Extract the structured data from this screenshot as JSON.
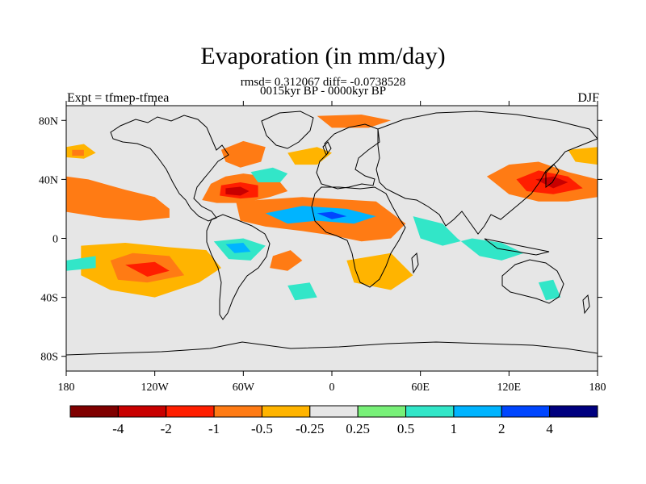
{
  "chart_data": {
    "type": "heatmap",
    "title": "Evaporation (in mm/day)",
    "subtitle_line1": "rmsd= 0.312067 diff= -0.0738528",
    "subtitle_line2": "0015kyr BP - 0000kyr BP",
    "left_label": "Expt = tfmep-tfmea",
    "right_label": "DJF",
    "xlim": [
      -180,
      180
    ],
    "ylim": [
      -90,
      90
    ],
    "x_ticks": [
      {
        "value": -180,
        "label": "180"
      },
      {
        "value": -120,
        "label": "120W"
      },
      {
        "value": -60,
        "label": "60W"
      },
      {
        "value": 0,
        "label": "0"
      },
      {
        "value": 60,
        "label": "60E"
      },
      {
        "value": 120,
        "label": "120E"
      },
      {
        "value": 180,
        "label": "180"
      }
    ],
    "y_ticks": [
      {
        "value": 80,
        "label": "80N"
      },
      {
        "value": 40,
        "label": "40N"
      },
      {
        "value": 0,
        "label": "0"
      },
      {
        "value": -40,
        "label": "40S"
      },
      {
        "value": -80,
        "label": "80S"
      }
    ],
    "colorbar": {
      "colors": [
        "#7f0000",
        "#c80000",
        "#ff1e00",
        "#ff7b14",
        "#ffb400",
        "#e6e6e6",
        "#78f078",
        "#32e6c8",
        "#00b4ff",
        "#0046ff",
        "#00007f"
      ],
      "labels": [
        "-4",
        "-2",
        "-1",
        "-0.5",
        "-0.25",
        "0.25",
        "0.5",
        "1",
        "2",
        "4"
      ]
    },
    "regions": [
      {
        "level": -0.5,
        "points": [
          [
            -180,
            42
          ],
          [
            -165,
            40
          ],
          [
            -140,
            33
          ],
          [
            -120,
            28
          ],
          [
            -110,
            20
          ],
          [
            -110,
            14
          ],
          [
            -130,
            12
          ],
          [
            -155,
            14
          ],
          [
            -180,
            18
          ]
        ]
      },
      {
        "level": -0.25,
        "points": [
          [
            -180,
            62
          ],
          [
            -168,
            64
          ],
          [
            -160,
            58
          ],
          [
            -168,
            54
          ],
          [
            -180,
            55
          ]
        ]
      },
      {
        "level": -0.5,
        "points": [
          [
            -176,
            60
          ],
          [
            -168,
            60
          ],
          [
            -168,
            56
          ],
          [
            -176,
            56
          ]
        ]
      },
      {
        "level": -0.5,
        "points": [
          [
            -82,
            37
          ],
          [
            -72,
            42
          ],
          [
            -60,
            44
          ],
          [
            -45,
            42
          ],
          [
            -35,
            38
          ],
          [
            -30,
            32
          ],
          [
            -42,
            28
          ],
          [
            -60,
            24
          ],
          [
            -78,
            24
          ],
          [
            -88,
            26
          ]
        ]
      },
      {
        "level": -1,
        "points": [
          [
            -75,
            36
          ],
          [
            -62,
            38
          ],
          [
            -50,
            36
          ],
          [
            -50,
            28
          ],
          [
            -62,
            27
          ],
          [
            -76,
            29
          ]
        ]
      },
      {
        "level": -2,
        "points": [
          [
            -72,
            34
          ],
          [
            -62,
            35
          ],
          [
            -56,
            32
          ],
          [
            -62,
            29
          ],
          [
            -72,
            30
          ]
        ]
      },
      {
        "level": -0.5,
        "points": [
          [
            -75,
            60
          ],
          [
            -60,
            66
          ],
          [
            -45,
            62
          ],
          [
            -48,
            52
          ],
          [
            -62,
            48
          ],
          [
            -72,
            52
          ]
        ]
      },
      {
        "level": -0.5,
        "points": [
          [
            -10,
            83
          ],
          [
            20,
            84
          ],
          [
            40,
            80
          ],
          [
            25,
            75
          ],
          [
            0,
            75
          ]
        ]
      },
      {
        "level": -0.25,
        "points": [
          [
            -30,
            58
          ],
          [
            -10,
            62
          ],
          [
            0,
            58
          ],
          [
            -10,
            50
          ],
          [
            -25,
            50
          ]
        ]
      },
      {
        "level": 0.5,
        "points": [
          [
            -55,
            45
          ],
          [
            -40,
            48
          ],
          [
            -30,
            44
          ],
          [
            -35,
            38
          ],
          [
            -50,
            38
          ]
        ]
      },
      {
        "level": -0.25,
        "points": [
          [
            -170,
            -5
          ],
          [
            -140,
            -3
          ],
          [
            -110,
            -6
          ],
          [
            -85,
            -8
          ],
          [
            -75,
            -20
          ],
          [
            -90,
            -30
          ],
          [
            -120,
            -40
          ],
          [
            -150,
            -35
          ],
          [
            -170,
            -25
          ]
        ]
      },
      {
        "level": -0.5,
        "points": [
          [
            -150,
            -15
          ],
          [
            -135,
            -10
          ],
          [
            -110,
            -12
          ],
          [
            -100,
            -25
          ],
          [
            -125,
            -30
          ],
          [
            -145,
            -28
          ]
        ]
      },
      {
        "level": -1,
        "points": [
          [
            -140,
            -18
          ],
          [
            -120,
            -16
          ],
          [
            -110,
            -22
          ],
          [
            -125,
            -26
          ]
        ]
      },
      {
        "level": -0.5,
        "points": [
          [
            -40,
            -12
          ],
          [
            -28,
            -8
          ],
          [
            -20,
            -15
          ],
          [
            -30,
            -22
          ],
          [
            -42,
            -20
          ]
        ]
      },
      {
        "level": -0.5,
        "points": [
          [
            -65,
            25
          ],
          [
            -20,
            28
          ],
          [
            30,
            25
          ],
          [
            50,
            10
          ],
          [
            40,
            0
          ],
          [
            20,
            -2
          ],
          [
            0,
            2
          ],
          [
            -20,
            5
          ],
          [
            -45,
            8
          ],
          [
            -62,
            12
          ]
        ]
      },
      {
        "level": 1,
        "points": [
          [
            -45,
            17
          ],
          [
            -20,
            22
          ],
          [
            10,
            20
          ],
          [
            30,
            15
          ],
          [
            15,
            10
          ],
          [
            -10,
            12
          ],
          [
            -30,
            10
          ]
        ]
      },
      {
        "level": 2,
        "points": [
          [
            -10,
            17
          ],
          [
            0,
            18
          ],
          [
            10,
            15
          ],
          [
            0,
            13
          ]
        ]
      },
      {
        "level": 0.5,
        "points": [
          [
            -80,
            -2
          ],
          [
            -60,
            0
          ],
          [
            -45,
            -5
          ],
          [
            -55,
            -15
          ],
          [
            -70,
            -14
          ]
        ]
      },
      {
        "level": 1,
        "points": [
          [
            -72,
            -4
          ],
          [
            -60,
            -3
          ],
          [
            -55,
            -9
          ],
          [
            -66,
            -10
          ]
        ]
      },
      {
        "level": 0.5,
        "points": [
          [
            55,
            15
          ],
          [
            75,
            10
          ],
          [
            85,
            0
          ],
          [
            100,
            -12
          ],
          [
            115,
            -15
          ],
          [
            130,
            -10
          ],
          [
            115,
            -3
          ],
          [
            95,
            0
          ],
          [
            75,
            -5
          ],
          [
            60,
            0
          ]
        ]
      },
      {
        "level": -0.5,
        "points": [
          [
            105,
            42
          ],
          [
            120,
            50
          ],
          [
            140,
            52
          ],
          [
            160,
            45
          ],
          [
            180,
            40
          ],
          [
            180,
            28
          ],
          [
            160,
            25
          ],
          [
            140,
            25
          ],
          [
            120,
            30
          ]
        ]
      },
      {
        "level": -1,
        "points": [
          [
            125,
            40
          ],
          [
            140,
            46
          ],
          [
            160,
            42
          ],
          [
            170,
            34
          ],
          [
            150,
            30
          ],
          [
            132,
            32
          ]
        ]
      },
      {
        "level": -2,
        "points": [
          [
            138,
            40
          ],
          [
            150,
            42
          ],
          [
            160,
            38
          ],
          [
            150,
            34
          ]
        ]
      },
      {
        "level": -0.25,
        "points": [
          [
            160,
            60
          ],
          [
            180,
            62
          ],
          [
            180,
            50
          ],
          [
            165,
            52
          ]
        ]
      },
      {
        "level": 0.5,
        "points": [
          [
            140,
            -30
          ],
          [
            150,
            -28
          ],
          [
            155,
            -40
          ],
          [
            145,
            -42
          ]
        ]
      },
      {
        "level": 0.5,
        "points": [
          [
            -30,
            -32
          ],
          [
            -15,
            -30
          ],
          [
            -10,
            -40
          ],
          [
            -25,
            -42
          ]
        ]
      },
      {
        "level": -0.25,
        "points": [
          [
            10,
            -15
          ],
          [
            40,
            -10
          ],
          [
            55,
            -25
          ],
          [
            40,
            -35
          ],
          [
            15,
            -30
          ]
        ]
      },
      {
        "level": 0.5,
        "points": [
          [
            -180,
            -15
          ],
          [
            -160,
            -12
          ],
          [
            -160,
            -20
          ],
          [
            -180,
            -22
          ]
        ]
      }
    ]
  }
}
